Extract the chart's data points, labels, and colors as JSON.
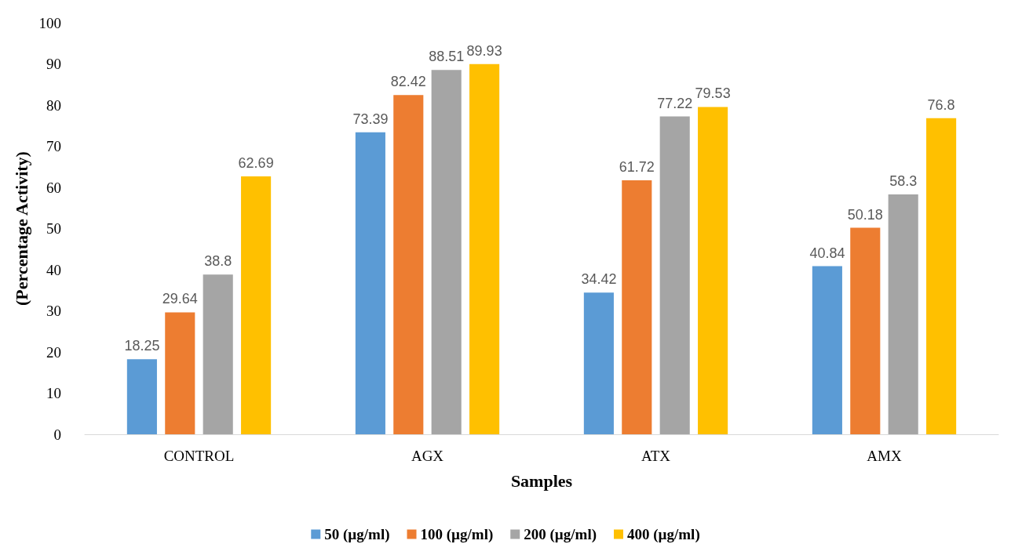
{
  "chart_data": {
    "type": "bar",
    "xlabel": "Samples",
    "ylabel": "(Percentage Activity)",
    "categories": [
      "CONTROL",
      "AGX",
      "ATX",
      "AMX"
    ],
    "series": [
      {
        "name": "50 (µg/ml)",
        "color": "#5b9bd5",
        "values": [
          18.25,
          73.39,
          34.42,
          40.84
        ]
      },
      {
        "name": "100 (µg/ml)",
        "color": "#ed7d31",
        "values": [
          29.64,
          82.42,
          61.72,
          50.18
        ]
      },
      {
        "name": "200 (µg/ml)",
        "color": "#a5a5a5",
        "values": [
          38.8,
          88.51,
          77.22,
          58.3
        ]
      },
      {
        "name": "400 (µg/ml)",
        "color": "#ffc000",
        "values": [
          62.69,
          89.93,
          79.53,
          76.8
        ]
      }
    ],
    "ylim": [
      0,
      100
    ],
    "yticks": [
      0,
      10,
      20,
      30,
      40,
      50,
      60,
      70,
      80,
      90,
      100
    ],
    "grid": false,
    "legend": "bottom",
    "data_labels": true
  }
}
